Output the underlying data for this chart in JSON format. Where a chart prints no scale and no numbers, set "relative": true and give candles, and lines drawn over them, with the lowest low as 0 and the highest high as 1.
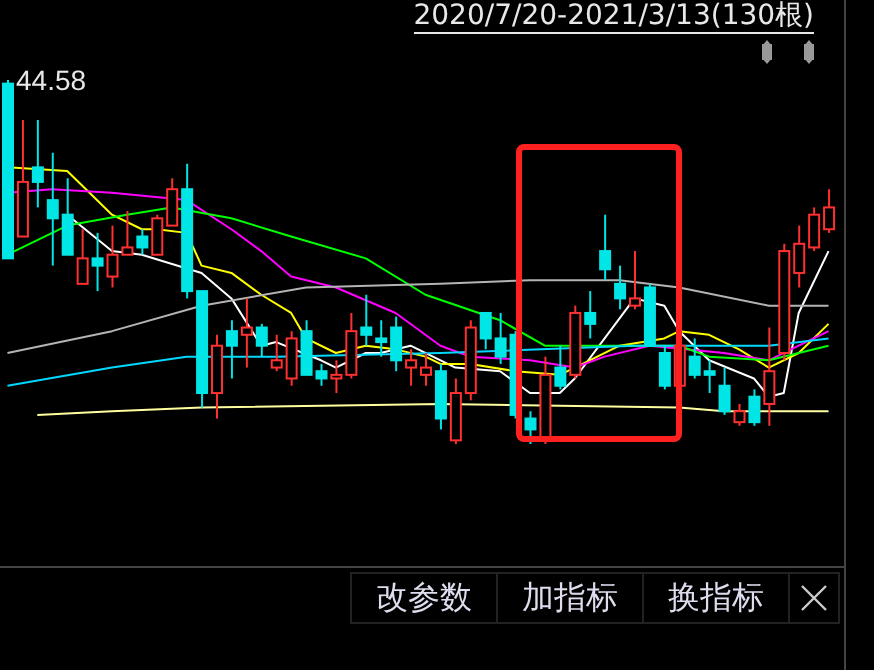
{
  "chart_data": {
    "type": "candlestick",
    "title": "2020/7/20-2021/3/13(130根)",
    "relative": true,
    "tick_labels": false,
    "categories": [
      null,
      null,
      null,
      null,
      null,
      null,
      null,
      null,
      null,
      null,
      null,
      null,
      null,
      null,
      null,
      null,
      null,
      null,
      null,
      null,
      null,
      null,
      null,
      null,
      null,
      null,
      null,
      null,
      null,
      null,
      null,
      null,
      null,
      null,
      null,
      null,
      null,
      null,
      null,
      null,
      null,
      null,
      null,
      null,
      null,
      null,
      null,
      null,
      null,
      null,
      null,
      null,
      null,
      null,
      null,
      null
    ],
    "ohlc": [
      [
        0.99,
        1,
        0.51,
        0.51
      ],
      [
        0.57,
        0.89,
        0.57,
        0.72
      ],
      [
        0.76,
        0.89,
        0.65,
        0.72
      ],
      [
        0.67,
        0.8,
        0.49,
        0.62
      ],
      [
        0.63,
        0.73,
        0.52,
        0.52
      ],
      [
        0.44,
        0.59,
        0.44,
        0.51
      ],
      [
        0.51,
        0.58,
        0.42,
        0.49
      ],
      [
        0.46,
        0.6,
        0.43,
        0.52
      ],
      [
        0.52,
        0.64,
        0.52,
        0.54
      ],
      [
        0.57,
        0.59,
        0.52,
        0.54
      ],
      [
        0.52,
        0.63,
        0.52,
        0.62
      ],
      [
        0.6,
        0.73,
        0.6,
        0.7
      ],
      [
        0.7,
        0.77,
        0.4,
        0.42
      ],
      [
        0.42,
        0.42,
        0.1,
        0.14
      ],
      [
        0.14,
        0.3,
        0.07,
        0.27
      ],
      [
        0.31,
        0.34,
        0.18,
        0.27
      ],
      [
        0.3,
        0.4,
        0.21,
        0.32
      ],
      [
        0.32,
        0.33,
        0.24,
        0.27
      ],
      [
        0.21,
        0.3,
        0.2,
        0.23
      ],
      [
        0.18,
        0.31,
        0.16,
        0.29
      ],
      [
        0.31,
        0.34,
        0.19,
        0.19
      ],
      [
        0.2,
        0.22,
        0.16,
        0.18
      ],
      [
        0.18,
        0.23,
        0.14,
        0.19
      ],
      [
        0.19,
        0.36,
        0.18,
        0.31
      ],
      [
        0.32,
        0.41,
        0.27,
        0.3
      ],
      [
        0.29,
        0.34,
        0.24,
        0.28
      ],
      [
        0.32,
        0.35,
        0.2,
        0.23
      ],
      [
        0.21,
        0.26,
        0.16,
        0.23
      ],
      [
        0.19,
        0.25,
        0.16,
        0.21
      ],
      [
        0.2,
        0.22,
        0.04,
        0.07
      ],
      [
        0.01,
        0.18,
        0,
        0.14
      ],
      [
        0.14,
        0.34,
        0.12,
        0.32
      ],
      [
        0.36,
        0.36,
        0.26,
        0.29
      ],
      [
        0.29,
        0.36,
        0.22,
        0.24
      ],
      [
        0.3,
        0.31,
        0.07,
        0.08
      ],
      [
        0.07,
        0.09,
        0,
        0.04
      ],
      [
        0.01,
        0.24,
        0,
        0.19
      ],
      [
        0.21,
        0.27,
        0.15,
        0.16
      ],
      [
        0.19,
        0.38,
        0.18,
        0.36
      ],
      [
        0.36,
        0.42,
        0.29,
        0.33
      ],
      [
        0.53,
        0.63,
        0.45,
        0.48
      ],
      [
        0.44,
        0.49,
        0.37,
        0.4
      ],
      [
        0.38,
        0.53,
        0.37,
        0.4
      ],
      [
        0.43,
        0.44,
        0.27,
        0.27
      ],
      [
        0.25,
        0.27,
        0.15,
        0.16
      ],
      [
        0.16,
        0.29,
        0.16,
        0.27
      ],
      [
        0.24,
        0.29,
        0.18,
        0.19
      ],
      [
        0.2,
        0.23,
        0.14,
        0.19
      ],
      [
        0.16,
        0.21,
        0.08,
        0.09
      ],
      [
        0.06,
        0.11,
        0.05,
        0.09
      ],
      [
        0.13,
        0.15,
        0.05,
        0.06
      ],
      [
        0.11,
        0.32,
        0.05,
        0.2
      ],
      [
        0.25,
        0.55,
        0.23,
        0.53
      ],
      [
        0.47,
        0.6,
        0.43,
        0.55
      ],
      [
        0.54,
        0.65,
        0.53,
        0.63
      ],
      [
        0.59,
        0.7,
        0.58,
        0.65
      ]
    ],
    "colors": [
      "#00e5e5",
      "#ff3030",
      "#00e5e5",
      "#00e5e5",
      "#00e5e5",
      "#ff3030",
      "#00e5e5",
      "#ff3030",
      "#ff3030",
      "#00e5e5",
      "#ff3030",
      "#ff3030",
      "#00e5e5",
      "#00e5e5",
      "#ff3030",
      "#00e5e5",
      "#ff3030",
      "#00e5e5",
      "#ff3030",
      "#ff3030",
      "#00e5e5",
      "#00e5e5",
      "#ff3030",
      "#ff3030",
      "#00e5e5",
      "#00e5e5",
      "#00e5e5",
      "#ff3030",
      "#ff3030",
      "#00e5e5",
      "#ff3030",
      "#ff3030",
      "#00e5e5",
      "#00e5e5",
      "#00e5e5",
      "#00e5e5",
      "#ff3030",
      "#00e5e5",
      "#ff3030",
      "#00e5e5",
      "#00e5e5",
      "#00e5e5",
      "#ff3030",
      "#00e5e5",
      "#00e5e5",
      "#ff3030",
      "#00e5e5",
      "#00e5e5",
      "#00e5e5",
      "#ff3030",
      "#00e5e5",
      "#ff3030",
      "#ff3030",
      "#ff3030",
      "#ff3030",
      "#ff3030"
    ],
    "series": [
      {
        "type": "line",
        "color": "#ffffff",
        "values": [
          null,
          null,
          null,
          null,
          0.63,
          null,
          null,
          0.53,
          null,
          0.52,
          null,
          null,
          null,
          0.47,
          null,
          0.4,
          null,
          0.27,
          0.28,
          null,
          null,
          0.23,
          0.21,
          null,
          0.25,
          0.25,
          null,
          0.27,
          null,
          null,
          0.21,
          null,
          null,
          0.2,
          null,
          0.14,
          null,
          0.14,
          0.18,
          null,
          0.29,
          null,
          0.4,
          null,
          0.38,
          0.31,
          null,
          0.23,
          null,
          null,
          0.18,
          0.13,
          0.14,
          0.36,
          null,
          0.53
        ]
      },
      {
        "type": "line",
        "color": "#ffff00",
        "values": [
          0.76,
          null,
          null,
          null,
          0.75,
          0.71,
          null,
          0.63,
          null,
          0.59,
          0.59,
          null,
          0.58,
          0.49,
          null,
          0.47,
          null,
          0.41,
          null,
          0.36,
          0.29,
          null,
          0.25,
          null,
          0.27,
          null,
          0.26,
          null,
          0.24,
          0.22,
          null,
          0.22,
          null,
          null,
          0.2,
          null,
          null,
          0.19,
          null,
          0.23,
          null,
          0.27,
          null,
          null,
          0.29,
          0.31,
          null,
          0.3,
          null,
          0.26,
          null,
          0.21,
          null,
          0.25,
          null,
          0.33
        ]
      },
      {
        "type": "line",
        "color": "#ff00ff",
        "values": [
          0.69,
          null,
          null,
          0.7,
          null,
          null,
          null,
          0.69,
          null,
          null,
          null,
          null,
          0.67,
          null,
          null,
          0.59,
          null,
          0.53,
          null,
          0.46,
          null,
          null,
          0.43,
          null,
          null,
          null,
          0.36,
          null,
          null,
          0.27,
          null,
          0.24,
          null,
          null,
          null,
          0.23,
          null,
          null,
          0.21,
          null,
          0.24,
          null,
          null,
          0.27,
          null,
          null,
          null,
          null,
          0.25,
          null,
          null,
          0.23,
          null,
          0.27,
          null,
          0.31
        ]
      },
      {
        "type": "line",
        "color": "#00ff00",
        "values": [
          0.52,
          null,
          null,
          null,
          0.6,
          null,
          null,
          null,
          0.63,
          null,
          null,
          0.65,
          null,
          null,
          null,
          0.62,
          null,
          null,
          null,
          0.57,
          null,
          null,
          null,
          null,
          0.51,
          null,
          null,
          null,
          0.41,
          null,
          null,
          null,
          null,
          0.34,
          null,
          null,
          0.27,
          null,
          0.27,
          null,
          null,
          null,
          0.27,
          null,
          null,
          0.27,
          null,
          0.24,
          null,
          null,
          null,
          0.23,
          null,
          0.25,
          null,
          0.27
        ]
      },
      {
        "type": "line",
        "color": "#b4b4b4",
        "values": [
          0.25,
          null,
          null,
          null,
          null,
          null,
          null,
          0.31,
          null,
          null,
          null,
          null,
          null,
          0.38,
          null,
          null,
          null,
          null,
          null,
          null,
          0.43,
          null,
          null,
          null,
          null,
          null,
          null,
          null,
          null,
          0.44,
          null,
          null,
          null,
          null,
          null,
          0.45,
          null,
          null,
          null,
          null,
          null,
          0.45,
          null,
          null,
          null,
          0.43,
          null,
          null,
          null,
          null,
          null,
          0.38,
          null,
          null,
          null,
          0.38
        ]
      },
      {
        "type": "line",
        "color": "#00d8ff",
        "values": [
          0.16,
          null,
          null,
          null,
          null,
          null,
          null,
          0.21,
          null,
          null,
          null,
          null,
          0.24,
          null,
          null,
          null,
          null,
          null,
          0.24,
          null,
          null,
          null,
          null,
          null,
          null,
          null,
          null,
          null,
          null,
          0.25,
          null,
          null,
          null,
          null,
          null,
          null,
          null,
          null,
          null,
          null,
          null,
          null,
          0.27,
          null,
          null,
          null,
          null,
          null,
          null,
          null,
          null,
          0.27,
          null,
          null,
          null,
          0.29
        ]
      },
      {
        "type": "line",
        "color": "#ffffa0",
        "values": [
          null,
          null,
          0.08,
          null,
          null,
          null,
          null,
          0.09,
          null,
          null,
          null,
          null,
          null,
          0.1,
          null,
          null,
          null,
          null,
          null,
          null,
          null,
          null,
          null,
          null,
          null,
          null,
          null,
          null,
          null,
          0.11,
          null,
          null,
          null,
          null,
          null,
          null,
          null,
          null,
          null,
          null,
          null,
          null,
          null,
          null,
          null,
          0.1,
          null,
          null,
          0.09,
          null,
          null,
          null,
          null,
          null,
          null,
          0.09
        ]
      }
    ],
    "annotations": [
      "44.58",
      "改参数",
      "加指标",
      "换指标"
    ]
  }
}
